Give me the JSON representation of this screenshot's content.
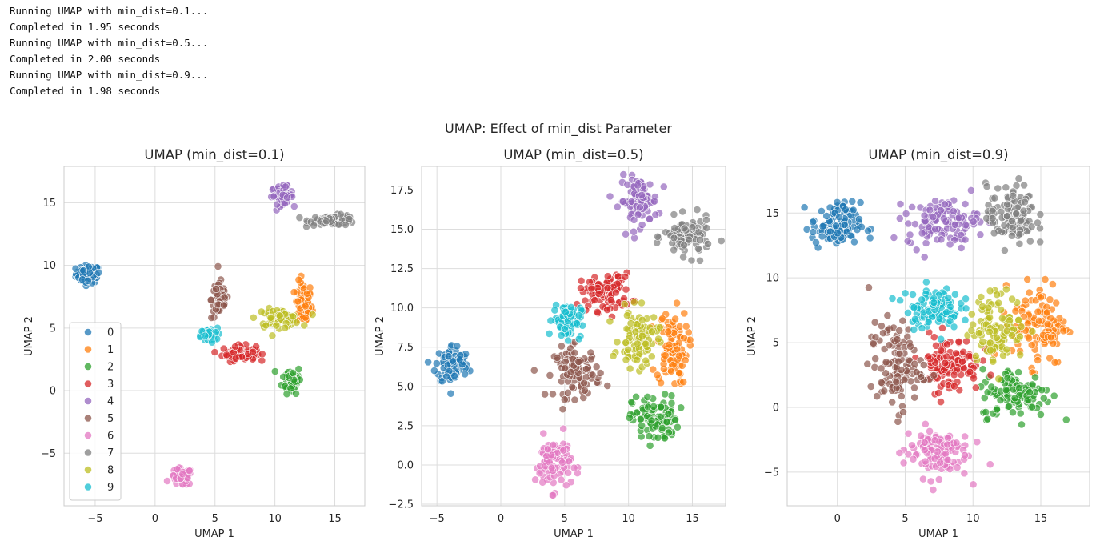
{
  "console": {
    "lines": [
      "Running UMAP with min_dist=0.1...",
      "Completed in 1.95 seconds",
      "Running UMAP with min_dist=0.5...",
      "Completed in 2.00 seconds",
      "Running UMAP with min_dist=0.9...",
      "Completed in 1.98 seconds"
    ]
  },
  "figure": {
    "suptitle": "UMAP: Effect of min_dist Parameter"
  },
  "colors": [
    "#1f77b4",
    "#ff7f0e",
    "#2ca02c",
    "#d62728",
    "#9467bd",
    "#8c564b",
    "#e377c2",
    "#7f7f7f",
    "#bcbd22",
    "#17becf"
  ],
  "legend": {
    "labels": [
      "0",
      "1",
      "2",
      "3",
      "4",
      "5",
      "6",
      "7",
      "8",
      "9"
    ],
    "placement": "lower-left"
  },
  "chart_data": [
    {
      "type": "scatter",
      "title": "UMAP (min_dist=0.1)",
      "xlabel": "UMAP 1",
      "ylabel": "UMAP 2",
      "xlim": [
        -7.6,
        17.5
      ],
      "ylim": [
        -9.2,
        17.9
      ],
      "xticks": [
        -5,
        0,
        5,
        10,
        15
      ],
      "yticks": [
        -5,
        0,
        5,
        10,
        15
      ],
      "xtick_labels": [
        "−5",
        "0",
        "5",
        "10",
        "15"
      ],
      "ytick_labels": [
        "−5",
        "0",
        "5",
        "10",
        "15"
      ],
      "grid": true,
      "clusters": [
        {
          "label": "0",
          "cx": -5.6,
          "cy": 9.3,
          "sx": 0.5,
          "sy": 0.35,
          "n": 70
        },
        {
          "label": "1",
          "cx": 12.4,
          "cy": 6.9,
          "sx": 0.35,
          "sy": 0.9,
          "n": 60
        },
        {
          "label": "2",
          "cx": 11.4,
          "cy": 0.9,
          "sx": 0.4,
          "sy": 0.55,
          "n": 55
        },
        {
          "label": "3",
          "cx": 7.0,
          "cy": 3.0,
          "sx": 0.7,
          "sy": 0.3,
          "n": 70
        },
        {
          "label": "4",
          "cx": 10.6,
          "cy": 15.6,
          "sx": 0.45,
          "sy": 0.35,
          "n": 60
        },
        {
          "label": "5",
          "cx": 5.4,
          "cy": 7.3,
          "sx": 0.35,
          "sy": 0.8,
          "n": 55
        },
        {
          "label": "6",
          "cx": 2.2,
          "cy": -6.9,
          "sx": 0.45,
          "sy": 0.35,
          "n": 60
        },
        {
          "label": "7",
          "cx": 14.9,
          "cy": 13.6,
          "sx": 1.0,
          "sy": 0.2,
          "n": 70
        },
        {
          "label": "8",
          "cx": 10.3,
          "cy": 5.8,
          "sx": 0.9,
          "sy": 0.35,
          "n": 65
        },
        {
          "label": "9",
          "cx": 4.5,
          "cy": 4.4,
          "sx": 0.35,
          "sy": 0.3,
          "n": 45
        }
      ]
    },
    {
      "type": "scatter",
      "title": "UMAP (min_dist=0.5)",
      "xlabel": "UMAP 1",
      "ylabel": "UMAP 2",
      "xlim": [
        -6.2,
        17.6
      ],
      "ylim": [
        -2.6,
        19.0
      ],
      "xticks": [
        -5,
        0,
        5,
        10,
        15
      ],
      "yticks": [
        -2.5,
        0.0,
        2.5,
        5.0,
        7.5,
        10.0,
        12.5,
        15.0,
        17.5
      ],
      "xtick_labels": [
        "−5",
        "0",
        "5",
        "10",
        "15"
      ],
      "ytick_labels": [
        "−2.5",
        "0.0",
        "2.5",
        "5.0",
        "7.5",
        "10.0",
        "12.5",
        "15.0",
        "17.5"
      ],
      "grid": true,
      "clusters": [
        {
          "label": "0",
          "cx": -3.8,
          "cy": 6.4,
          "sx": 0.65,
          "sy": 0.65,
          "n": 90
        },
        {
          "label": "1",
          "cx": 13.4,
          "cy": 7.5,
          "sx": 0.6,
          "sy": 1.2,
          "n": 90
        },
        {
          "label": "2",
          "cx": 12.1,
          "cy": 2.9,
          "sx": 0.9,
          "sy": 0.75,
          "n": 90
        },
        {
          "label": "3",
          "cx": 8.2,
          "cy": 11.0,
          "sx": 1.0,
          "sy": 0.6,
          "n": 90
        },
        {
          "label": "4",
          "cx": 10.8,
          "cy": 16.8,
          "sx": 0.75,
          "sy": 0.75,
          "n": 90
        },
        {
          "label": "5",
          "cx": 6.0,
          "cy": 5.9,
          "sx": 0.9,
          "sy": 0.8,
          "n": 90
        },
        {
          "label": "6",
          "cx": 4.1,
          "cy": 0.1,
          "sx": 0.7,
          "sy": 0.85,
          "n": 90
        },
        {
          "label": "7",
          "cx": 14.6,
          "cy": 14.5,
          "sx": 0.9,
          "sy": 0.6,
          "n": 90
        },
        {
          "label": "8",
          "cx": 10.8,
          "cy": 8.0,
          "sx": 0.75,
          "sy": 0.9,
          "n": 90
        },
        {
          "label": "9",
          "cx": 5.2,
          "cy": 9.2,
          "sx": 0.55,
          "sy": 0.55,
          "n": 80
        }
      ]
    },
    {
      "type": "scatter",
      "title": "UMAP (min_dist=0.9)",
      "xlabel": "UMAP 1",
      "ylabel": "UMAP 2",
      "xlim": [
        -3.7,
        18.6
      ],
      "ylim": [
        -7.6,
        18.6
      ],
      "xticks": [
        0,
        5,
        10,
        15
      ],
      "yticks": [
        -5,
        0,
        5,
        10,
        15
      ],
      "xtick_labels": [
        "0",
        "5",
        "10",
        "15"
      ],
      "ytick_labels": [
        "−5",
        "0",
        "5",
        "10",
        "15"
      ],
      "grid": true,
      "clusters": [
        {
          "label": "0",
          "cx": -0.1,
          "cy": 14.0,
          "sx": 0.9,
          "sy": 0.9,
          "n": 110
        },
        {
          "label": "1",
          "cx": 14.9,
          "cy": 6.5,
          "sx": 1.0,
          "sy": 1.6,
          "n": 110
        },
        {
          "label": "2",
          "cx": 13.2,
          "cy": 1.1,
          "sx": 1.3,
          "sy": 0.95,
          "n": 110
        },
        {
          "label": "3",
          "cx": 8.3,
          "cy": 3.4,
          "sx": 1.1,
          "sy": 1.1,
          "n": 110
        },
        {
          "label": "4",
          "cx": 7.8,
          "cy": 14.3,
          "sx": 1.3,
          "sy": 0.9,
          "n": 110
        },
        {
          "label": "5",
          "cx": 4.3,
          "cy": 3.2,
          "sx": 1.0,
          "sy": 1.7,
          "n": 110
        },
        {
          "label": "6",
          "cx": 7.3,
          "cy": -3.4,
          "sx": 1.2,
          "sy": 1.0,
          "n": 110
        },
        {
          "label": "7",
          "cx": 12.8,
          "cy": 14.8,
          "sx": 0.9,
          "sy": 1.2,
          "n": 110
        },
        {
          "label": "8",
          "cx": 11.8,
          "cy": 6.2,
          "sx": 1.0,
          "sy": 1.3,
          "n": 110
        },
        {
          "label": "9",
          "cx": 7.0,
          "cy": 7.7,
          "sx": 1.0,
          "sy": 0.8,
          "n": 100
        }
      ]
    }
  ]
}
